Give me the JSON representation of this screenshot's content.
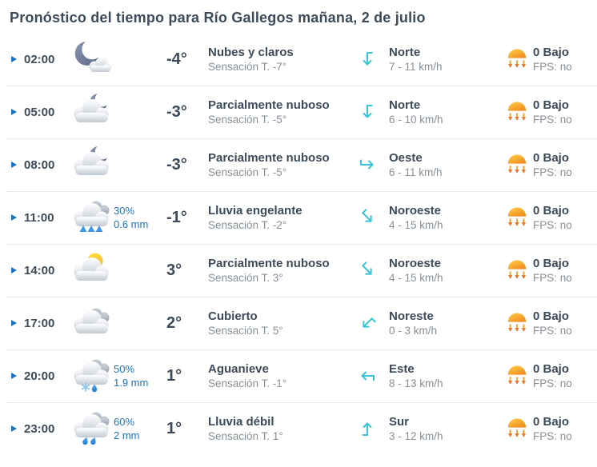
{
  "page": {
    "title": "Pronóstico del tiempo para Río Gallegos mañana, 2 de julio"
  },
  "colors": {
    "accent_blue": "#1e73be",
    "dark_text": "#3d4a59",
    "gray_text": "#878f97",
    "precip_blue": "#1e73be",
    "wind_arrow_cyan": "#35c6d8",
    "divider": "#e7ebee",
    "uv_orange": "#f7941d"
  },
  "rows": [
    {
      "time": "02:00",
      "icon": "moon-cloud-icon",
      "precip_prob": "",
      "precip_amount": "",
      "temp": "-4°",
      "condition": "Nubes y claros",
      "feels_like": "Sensación T. -7°",
      "wind_direction": "Norte",
      "wind_speed": "7 - 11 km/h",
      "uv_index": "0 Bajo",
      "fps": "FPS: no"
    },
    {
      "time": "05:00",
      "icon": "cloud-moon-icon",
      "precip_prob": "",
      "precip_amount": "",
      "temp": "-3°",
      "condition": "Parcialmente nuboso",
      "feels_like": "Sensación T. -5°",
      "wind_direction": "Norte",
      "wind_speed": "6 - 10 km/h",
      "uv_index": "0 Bajo",
      "fps": "FPS: no"
    },
    {
      "time": "08:00",
      "icon": "cloud-moon-icon",
      "precip_prob": "",
      "precip_amount": "",
      "temp": "-3°",
      "condition": "Parcialmente nuboso",
      "feels_like": "Sensación T. -5°",
      "wind_direction": "Oeste",
      "wind_speed": "6 - 11 km/h",
      "uv_index": "0 Bajo",
      "fps": "FPS: no"
    },
    {
      "time": "11:00",
      "icon": "freezing-rain-icon",
      "precip_prob": "30%",
      "precip_amount": "0.6 mm",
      "temp": "-1°",
      "condition": "Lluvia engelante",
      "feels_like": "Sensación T. -2°",
      "wind_direction": "Noroeste",
      "wind_speed": "4 - 15 km/h",
      "uv_index": "0 Bajo",
      "fps": "FPS: no"
    },
    {
      "time": "14:00",
      "icon": "sun-cloud-icon",
      "precip_prob": "",
      "precip_amount": "",
      "temp": "3°",
      "condition": "Parcialmente nuboso",
      "feels_like": "Sensación T. 3°",
      "wind_direction": "Noroeste",
      "wind_speed": "4 - 15 km/h",
      "uv_index": "0 Bajo",
      "fps": "FPS: no"
    },
    {
      "time": "17:00",
      "icon": "overcast-clouds-icon",
      "precip_prob": "",
      "precip_amount": "",
      "temp": "2°",
      "condition": "Cubierto",
      "feels_like": "Sensación T. 5°",
      "wind_direction": "Noreste",
      "wind_speed": "0 - 3 km/h",
      "uv_index": "0 Bajo",
      "fps": "FPS: no"
    },
    {
      "time": "20:00",
      "icon": "sleet-icon",
      "precip_prob": "50%",
      "precip_amount": "1.9 mm",
      "temp": "1°",
      "condition": "Aguanieve",
      "feels_like": "Sensación T. -1°",
      "wind_direction": "Este",
      "wind_speed": "8 - 13 km/h",
      "uv_index": "0 Bajo",
      "fps": "FPS: no"
    },
    {
      "time": "23:00",
      "icon": "light-rain-icon",
      "precip_prob": "60%",
      "precip_amount": "2 mm",
      "temp": "1°",
      "condition": "Lluvia débil",
      "feels_like": "Sensación T. 1°",
      "wind_direction": "Sur",
      "wind_speed": "3 - 12 km/h",
      "uv_index": "0 Bajo",
      "fps": "FPS: no"
    }
  ]
}
